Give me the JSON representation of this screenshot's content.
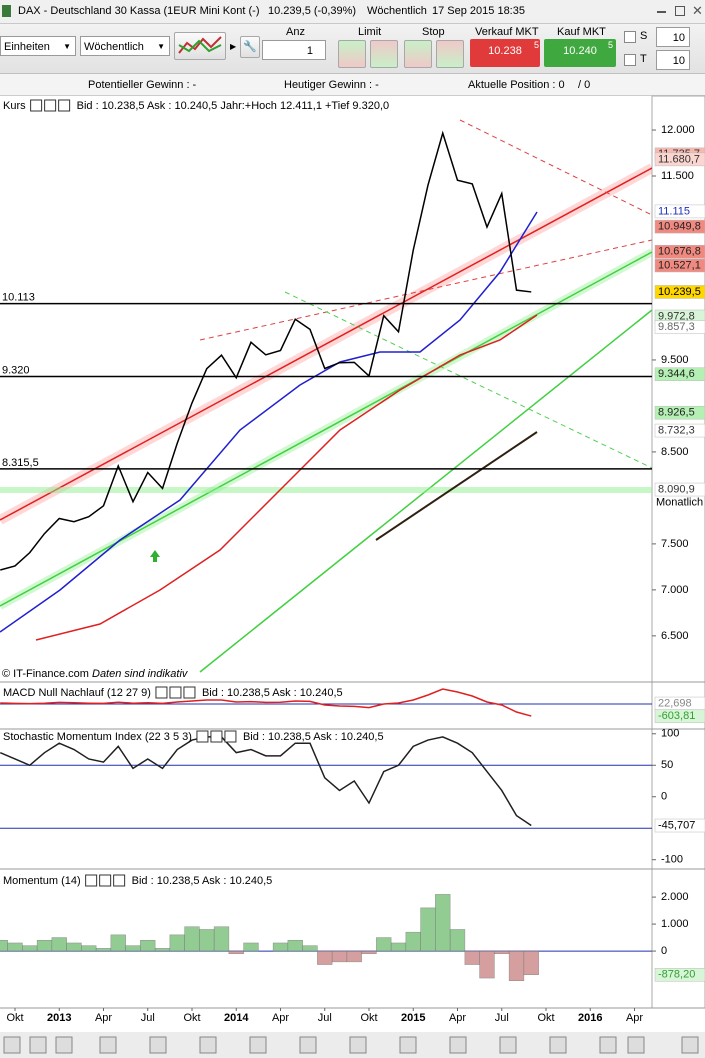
{
  "title_bar": {
    "instrument": "DAX - Deutschland 30 Kassa (1EUR Mini Kont (-)",
    "price": "10.239,5 (-0,39%)",
    "period": "Wöchentlich",
    "datetime": "17 Sep 2015 18:35"
  },
  "toolbar": {
    "units": "Einheiten",
    "period": "Wöchentlich",
    "qty_label": "Anz",
    "qty": "1",
    "limit": "Limit",
    "stop": "Stop",
    "sell_label": "Verkauf MKT",
    "sell_main": "10.238",
    "sell_small": "5",
    "buy_label": "Kauf MKT",
    "buy_main": "10.240",
    "buy_small": "5",
    "s_label": "S",
    "s_value": "10",
    "t_label": "T",
    "t_value": "10"
  },
  "info_bar": {
    "potential": "Potentieller Gewinn : -",
    "today": "Heutiger Gewinn : -",
    "position": "Aktuelle Position : 0",
    "position_end": "/ 0"
  },
  "chart_data": [
    {
      "type": "line",
      "title": "Kurs",
      "header_info": "Bid : 10.238,5 Ask : 10.240,5 Jahr:+Hoch 12.411,1 +Tief 9.320,0",
      "categories": [
        null,
        "Okt",
        null,
        null,
        "2013",
        null,
        null,
        "Apr",
        null,
        null,
        "Jul",
        null,
        null,
        "Okt",
        null,
        null,
        "2014",
        null,
        null,
        "Apr",
        null,
        null,
        "Jul",
        null,
        null,
        "Okt",
        null,
        null,
        "2015",
        null,
        null,
        "Apr",
        null,
        null,
        "Jul",
        null,
        null,
        "Okt",
        null,
        null,
        "2016",
        null,
        null,
        "Apr"
      ],
      "values": [
        7216,
        7260,
        7405,
        7612,
        7776,
        7741,
        7795,
        7914,
        8348,
        7959,
        8276,
        8103,
        8594,
        9033,
        9405,
        9552,
        9306,
        9692,
        9556,
        9603,
        9943,
        9833,
        9407,
        9470,
        9474,
        9326,
        9981,
        9806,
        10694,
        11402,
        11966,
        11454,
        11414,
        10945,
        11309,
        10259,
        10239.5,
        null,
        null,
        null,
        null,
        null,
        null,
        null
      ],
      "color": "#000000",
      "ylim": [
        6020,
        12370
      ],
      "yticks": [
        {
          "value": 12000,
          "label": "12.000"
        },
        {
          "value": 11500,
          "label": "11.500"
        },
        {
          "value": 9500,
          "label": "9.500"
        },
        {
          "value": 8500,
          "label": "8.500"
        },
        {
          "value": 7500,
          "label": "7.500"
        },
        {
          "value": 7000,
          "label": "7.000"
        },
        {
          "value": 6500,
          "label": "6.500"
        }
      ],
      "levels": [
        {
          "value": 10113,
          "label": "10.113"
        },
        {
          "value": 9320,
          "label": "9.320"
        },
        {
          "value": 8315.5,
          "label": "8.315,5"
        }
      ],
      "value_markers": [
        {
          "value": 11735.7,
          "label": "11.735,7",
          "color": "#f6b8b0",
          "text_color": "#333333"
        },
        {
          "value": 11680.7,
          "label": "11.680,7",
          "color": "#fbd5d0",
          "text_color": "#333333"
        },
        {
          "value": 11115,
          "label": "11.115",
          "color": "#ffffff",
          "text_color": "#2030c0"
        },
        {
          "value": 10949.8,
          "label": "10.949,8",
          "color": "#f08a80",
          "text_color": "#222222"
        },
        {
          "value": 10676.8,
          "label": "10.676,8",
          "color": "#f08a80",
          "text_color": "#222222"
        },
        {
          "value": 10527.1,
          "label": "10.527,1",
          "color": "#f08a80",
          "text_color": "#222222"
        },
        {
          "value": 10239.5,
          "label": "10.239,5",
          "color": "#ffd700",
          "text_color": "#000000"
        },
        {
          "value": 9972.8,
          "label": "9.972,8",
          "color": "#d8f5d8",
          "text_color": "#333333"
        },
        {
          "value": 9857.3,
          "label": "9.857,3",
          "color": "#ffffff",
          "text_color": "#666666"
        },
        {
          "value": 9344.6,
          "label": "9.344,6",
          "color": "#b4f0b4",
          "text_color": "#222222"
        },
        {
          "value": 8926.5,
          "label": "8.926,5",
          "color": "#b4f0b4",
          "text_color": "#222222"
        },
        {
          "value": 8732.3,
          "label": "8.732,3",
          "color": "#ffffff",
          "text_color": "#333333"
        },
        {
          "value": 8090.9,
          "label": "8.090,9",
          "color": "#ffffff",
          "text_color": "#333333"
        }
      ],
      "marker_note": "Monatlich",
      "source": "© IT-Finance.com",
      "disclaimer": "Daten sind indikativ"
    },
    {
      "type": "line",
      "title": "MACD Null Nachlauf (12 27 9)",
      "header_info": "Bid : 10.238,5 Ask : 10.240,5",
      "values": [
        50,
        30,
        20,
        40,
        80,
        60,
        40,
        30,
        90,
        40,
        60,
        30,
        100,
        150,
        200,
        200,
        100,
        120,
        80,
        90,
        150,
        130,
        -50,
        -100,
        -120,
        -180,
        0,
        50,
        200,
        450,
        750,
        600,
        400,
        100,
        -50,
        -400,
        -603.81,
        null,
        null,
        null,
        null,
        null,
        null,
        null
      ],
      "color": "#e02020",
      "ylim": [
        -1200,
        900
      ],
      "hlines": [
        0
      ],
      "value_markers": [
        {
          "value": 22.698,
          "label": "22,698",
          "color": "#ffffff",
          "text_color": "#888888"
        },
        {
          "value": -603.81,
          "label": "-603,81",
          "color": "#d8f5d8",
          "text_color": "#30a030"
        }
      ]
    },
    {
      "type": "line",
      "title": "Stochastic Momentum Index (22 3 5 3)",
      "header_info": "Bid : 10.238,5 Ask : 10.240,5",
      "values": [
        70,
        60,
        50,
        70,
        85,
        75,
        60,
        55,
        80,
        45,
        60,
        45,
        75,
        90,
        95,
        95,
        70,
        75,
        65,
        65,
        85,
        85,
        30,
        10,
        25,
        -10,
        40,
        50,
        80,
        90,
        95,
        85,
        70,
        40,
        10,
        -30,
        -45.707,
        null,
        null,
        null,
        null,
        null,
        null,
        null
      ],
      "color": "#202020",
      "ylim": [
        -110,
        106
      ],
      "yticks": [
        100,
        50,
        0,
        -100
      ],
      "hlines": [
        50,
        -50
      ],
      "value_markers": [
        {
          "value": -45.707,
          "label": "-45,707",
          "color": "#ffffff",
          "text_color": "#000000"
        }
      ]
    },
    {
      "type": "area",
      "title": "Momentum (14)",
      "header_info": "Bid : 10.238,5 Ask : 10.240,5",
      "values": [
        400,
        300,
        200,
        400,
        500,
        300,
        200,
        100,
        600,
        200,
        400,
        100,
        600,
        900,
        800,
        900,
        -100,
        300,
        0,
        300,
        400,
        200,
        -500,
        -400,
        -400,
        -100,
        500,
        300,
        700,
        1600,
        2100,
        800,
        -500,
        -1000,
        -100,
        -1100,
        -878.2,
        null,
        null,
        null,
        null,
        null,
        null,
        null
      ],
      "color": "#7fc47f",
      "negative_color": "#d08f8f",
      "ylim": [
        -2110,
        2930
      ],
      "yticks": [
        {
          "value": 2000,
          "label": "2.000"
        },
        {
          "value": 1000,
          "label": "1.000"
        },
        0
      ],
      "hlines": [
        0
      ],
      "value_markers": [
        {
          "value": -878.2,
          "label": "-878,20",
          "color": "#d8f5d8",
          "text_color": "#30a030"
        }
      ]
    }
  ]
}
